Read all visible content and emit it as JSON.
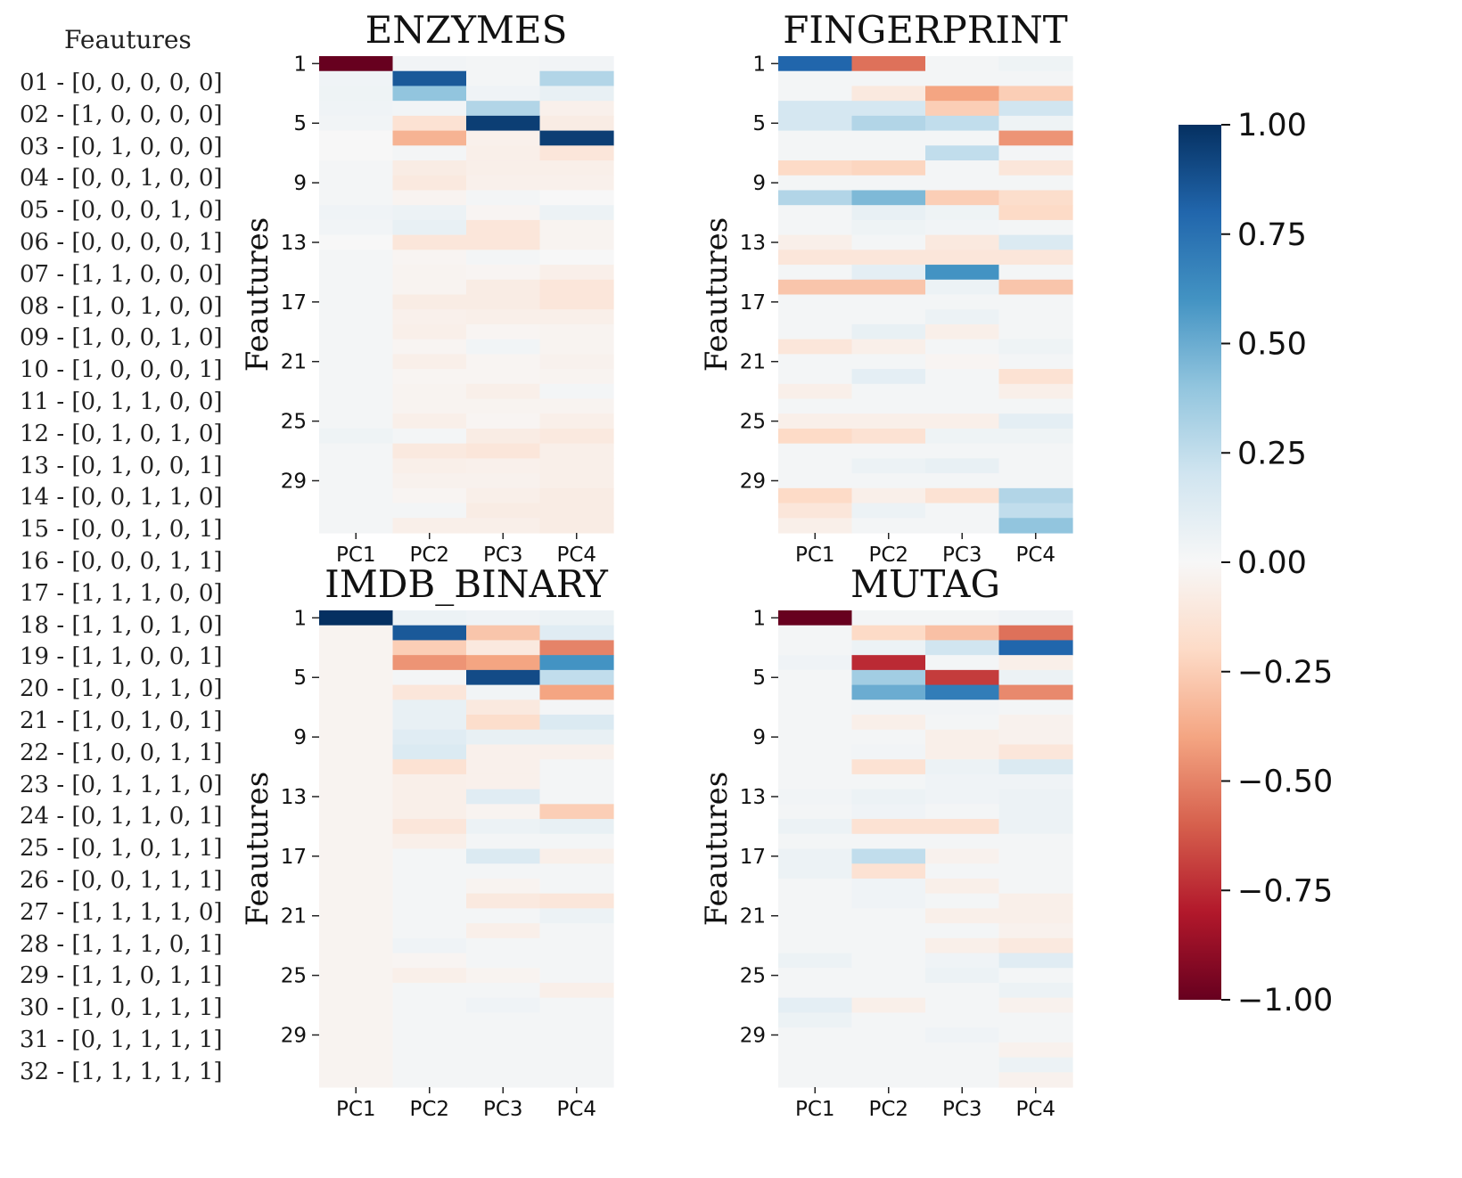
{
  "legend": {
    "title": "Feautures",
    "rows": [
      "01 - [0, 0, 0, 0, 0]",
      "02 - [1, 0, 0, 0, 0]",
      "03 - [0, 1, 0, 0, 0]",
      "04 - [0, 0, 1, 0, 0]",
      "05 - [0, 0, 0, 1, 0]",
      "06 - [0, 0, 0, 0, 1]",
      "07 - [1, 1, 0, 0, 0]",
      "08 - [1, 0, 1, 0, 0]",
      "09 - [1, 0, 0, 1, 0]",
      "10 - [1, 0, 0, 0, 1]",
      "11 - [0, 1, 1, 0, 0]",
      "12 - [0, 1, 0, 1, 0]",
      "13 - [0, 1, 0, 0, 1]",
      "14 - [0, 0, 1, 1, 0]",
      "15 - [0, 0, 1, 0, 1]",
      "16 - [0, 0, 0, 1, 1]",
      "17 - [1, 1, 1, 0, 0]",
      "18 - [1, 1, 0, 1, 0]",
      "19 - [1, 1, 0, 0, 1]",
      "20 - [1, 0, 1, 1, 0]",
      "21 - [1, 0, 1, 0, 1]",
      "22 - [1, 0, 0, 1, 1]",
      "23 - [0, 1, 1, 1, 0]",
      "24 - [0, 1, 1, 0, 1]",
      "25 - [0, 1, 0, 1, 1]",
      "26 - [0, 0, 1, 1, 1]",
      "27 - [1, 1, 1, 1, 0]",
      "28 - [1, 1, 1, 0, 1]",
      "29 - [1, 1, 0, 1, 1]",
      "30 - [1, 0, 1, 1, 1]",
      "31 - [0, 1, 1, 1, 1]",
      "32 - [1, 1, 1, 1, 1]"
    ]
  },
  "chart_data": [
    {
      "type": "heatmap",
      "title": "ENZYMES",
      "xlabel": "",
      "ylabel": "Feautures",
      "x": [
        "PC1",
        "PC2",
        "PC3",
        "PC4"
      ],
      "y_ticks": [
        "1",
        "5",
        "9",
        "13",
        "17",
        "21",
        "25",
        "29"
      ],
      "values": [
        [
          -1.0,
          0.03,
          0.02,
          0.03
        ],
        [
          0.04,
          0.85,
          0.02,
          0.3
        ],
        [
          0.05,
          0.4,
          0.04,
          0.08
        ],
        [
          0.04,
          0.03,
          0.3,
          -0.05
        ],
        [
          0.03,
          -0.15,
          0.95,
          -0.08
        ],
        [
          0.0,
          -0.35,
          -0.05,
          0.95
        ],
        [
          0.0,
          0.02,
          -0.06,
          -0.12
        ],
        [
          0.02,
          -0.08,
          -0.06,
          -0.06
        ],
        [
          0.02,
          -0.1,
          -0.05,
          -0.05
        ],
        [
          0.02,
          -0.03,
          0.02,
          0.0
        ],
        [
          0.04,
          0.06,
          -0.02,
          0.06
        ],
        [
          0.03,
          0.08,
          -0.12,
          -0.03
        ],
        [
          0.0,
          -0.12,
          -0.12,
          -0.03
        ],
        [
          0.02,
          -0.02,
          0.02,
          0.0
        ],
        [
          0.02,
          -0.03,
          -0.02,
          -0.06
        ],
        [
          0.02,
          -0.03,
          -0.08,
          -0.12
        ],
        [
          0.02,
          -0.08,
          -0.08,
          -0.12
        ],
        [
          0.02,
          -0.05,
          -0.06,
          -0.06
        ],
        [
          0.02,
          -0.06,
          -0.02,
          -0.03
        ],
        [
          0.02,
          -0.02,
          0.03,
          -0.03
        ],
        [
          0.02,
          -0.06,
          -0.02,
          -0.04
        ],
        [
          0.02,
          -0.02,
          -0.02,
          -0.03
        ],
        [
          0.02,
          -0.03,
          -0.06,
          0.02
        ],
        [
          0.02,
          -0.03,
          -0.03,
          -0.03
        ],
        [
          0.02,
          -0.06,
          -0.02,
          -0.06
        ],
        [
          0.05,
          0.02,
          -0.08,
          -0.1
        ],
        [
          0.02,
          -0.1,
          -0.12,
          -0.06
        ],
        [
          0.02,
          -0.06,
          -0.05,
          -0.06
        ],
        [
          0.02,
          -0.04,
          -0.04,
          -0.06
        ],
        [
          0.02,
          -0.02,
          -0.06,
          -0.08
        ],
        [
          0.02,
          0.02,
          -0.08,
          -0.08
        ],
        [
          0.02,
          -0.06,
          -0.06,
          -0.08
        ]
      ],
      "colorbar": {
        "range": [
          -1.0,
          1.0
        ],
        "cmap": "RdBu"
      }
    },
    {
      "type": "heatmap",
      "title": "FINGERPRINT",
      "xlabel": "",
      "ylabel": "Feautures",
      "x": [
        "PC1",
        "PC2",
        "PC3",
        "PC4"
      ],
      "y_ticks": [
        "1",
        "5",
        "9",
        "13",
        "17",
        "21",
        "25",
        "29"
      ],
      "values": [
        [
          0.8,
          -0.55,
          0.02,
          0.05
        ],
        [
          0.02,
          0.02,
          0.02,
          0.02
        ],
        [
          0.02,
          -0.1,
          -0.4,
          -0.25
        ],
        [
          0.18,
          0.18,
          -0.25,
          0.2
        ],
        [
          0.18,
          0.3,
          0.25,
          0.05
        ],
        [
          0.02,
          0.02,
          0.02,
          -0.45
        ],
        [
          0.02,
          0.02,
          0.25,
          0.02
        ],
        [
          -0.2,
          -0.22,
          0.02,
          -0.12
        ],
        [
          0.02,
          0.02,
          0.02,
          0.02
        ],
        [
          0.3,
          0.45,
          -0.25,
          -0.18
        ],
        [
          0.02,
          0.08,
          0.05,
          -0.2
        ],
        [
          0.02,
          0.05,
          0.03,
          0.02
        ],
        [
          -0.06,
          0.02,
          -0.1,
          0.15
        ],
        [
          -0.12,
          -0.12,
          -0.12,
          -0.12
        ],
        [
          0.02,
          0.1,
          0.6,
          0.02
        ],
        [
          -0.28,
          -0.28,
          0.06,
          -0.28
        ],
        [
          0.02,
          0.02,
          0.02,
          0.02
        ],
        [
          0.02,
          0.02,
          0.06,
          0.02
        ],
        [
          0.02,
          0.08,
          -0.06,
          0.02
        ],
        [
          -0.12,
          -0.06,
          0.02,
          0.05
        ],
        [
          0.02,
          0.02,
          -0.02,
          0.02
        ],
        [
          0.02,
          0.1,
          0.02,
          -0.15
        ],
        [
          -0.06,
          0.02,
          0.02,
          -0.06
        ],
        [
          0.02,
          0.02,
          0.02,
          0.02
        ],
        [
          -0.06,
          -0.06,
          -0.06,
          0.1
        ],
        [
          -0.2,
          -0.15,
          0.05,
          0.05
        ],
        [
          0.02,
          0.02,
          0.02,
          0.02
        ],
        [
          0.02,
          0.06,
          0.08,
          0.02
        ],
        [
          0.02,
          0.02,
          0.02,
          0.02
        ],
        [
          -0.2,
          -0.06,
          -0.15,
          0.3
        ],
        [
          -0.12,
          0.06,
          0.02,
          0.25
        ],
        [
          -0.06,
          0.02,
          0.02,
          0.4
        ]
      ],
      "colorbar": {
        "range": [
          -1.0,
          1.0
        ],
        "cmap": "RdBu"
      }
    },
    {
      "type": "heatmap",
      "title": "IMDB_BINARY",
      "xlabel": "",
      "ylabel": "Feautures",
      "x": [
        "PC1",
        "PC2",
        "PC3",
        "PC4"
      ],
      "y_ticks": [
        "1",
        "5",
        "9",
        "13",
        "17",
        "21",
        "25",
        "29"
      ],
      "values": [
        [
          1.0,
          0.06,
          0.04,
          0.06
        ],
        [
          -0.03,
          0.85,
          -0.28,
          0.12
        ],
        [
          -0.03,
          -0.25,
          -0.1,
          -0.5
        ],
        [
          -0.03,
          -0.45,
          -0.4,
          0.6
        ],
        [
          -0.03,
          0.02,
          0.9,
          0.25
        ],
        [
          -0.03,
          -0.12,
          0.03,
          -0.4
        ],
        [
          -0.03,
          0.08,
          -0.1,
          0.02
        ],
        [
          -0.03,
          0.08,
          -0.18,
          0.15
        ],
        [
          -0.03,
          0.12,
          0.08,
          0.08
        ],
        [
          -0.03,
          0.15,
          -0.05,
          -0.05
        ],
        [
          -0.03,
          -0.15,
          -0.05,
          0.02
        ],
        [
          -0.03,
          -0.06,
          -0.05,
          0.02
        ],
        [
          -0.03,
          -0.06,
          0.12,
          0.02
        ],
        [
          -0.03,
          -0.06,
          -0.03,
          -0.25
        ],
        [
          -0.03,
          -0.12,
          0.06,
          0.08
        ],
        [
          -0.03,
          -0.06,
          0.02,
          0.02
        ],
        [
          -0.03,
          0.02,
          0.15,
          -0.06
        ],
        [
          -0.03,
          0.02,
          0.02,
          0.02
        ],
        [
          -0.03,
          0.02,
          -0.03,
          0.02
        ],
        [
          -0.03,
          0.02,
          -0.1,
          -0.12
        ],
        [
          -0.03,
          0.02,
          0.02,
          0.06
        ],
        [
          -0.03,
          0.02,
          -0.06,
          0.02
        ],
        [
          -0.03,
          0.04,
          0.02,
          0.02
        ],
        [
          -0.03,
          -0.02,
          0.02,
          0.02
        ],
        [
          -0.03,
          -0.06,
          -0.03,
          0.02
        ],
        [
          -0.03,
          0.02,
          0.02,
          -0.06
        ],
        [
          -0.03,
          0.02,
          0.04,
          0.02
        ],
        [
          -0.03,
          0.02,
          0.02,
          0.02
        ],
        [
          -0.03,
          0.02,
          0.02,
          0.02
        ],
        [
          -0.03,
          0.02,
          0.02,
          0.02
        ],
        [
          -0.03,
          0.02,
          0.02,
          0.02
        ],
        [
          -0.03,
          0.02,
          0.02,
          0.02
        ]
      ],
      "colorbar": {
        "range": [
          -1.0,
          1.0
        ],
        "cmap": "RdBu"
      }
    },
    {
      "type": "heatmap",
      "title": "MUTAG",
      "xlabel": "",
      "ylabel": "Feautures",
      "x": [
        "PC1",
        "PC2",
        "PC3",
        "PC4"
      ],
      "y_ticks": [
        "1",
        "5",
        "9",
        "13",
        "17",
        "21",
        "25",
        "29"
      ],
      "values": [
        [
          -1.0,
          0.02,
          0.02,
          0.04
        ],
        [
          0.02,
          -0.2,
          -0.3,
          -0.55
        ],
        [
          0.02,
          0.06,
          0.2,
          0.8
        ],
        [
          0.04,
          -0.75,
          0.02,
          -0.06
        ],
        [
          0.02,
          0.35,
          -0.7,
          0.06
        ],
        [
          0.02,
          0.5,
          0.7,
          -0.48
        ],
        [
          0.02,
          0.03,
          0.03,
          0.02
        ],
        [
          0.02,
          -0.06,
          0.02,
          -0.04
        ],
        [
          0.02,
          0.02,
          -0.06,
          -0.04
        ],
        [
          0.02,
          0.03,
          -0.06,
          -0.12
        ],
        [
          0.02,
          -0.15,
          0.06,
          0.15
        ],
        [
          0.02,
          0.02,
          0.04,
          0.04
        ],
        [
          0.03,
          0.06,
          0.04,
          0.06
        ],
        [
          0.02,
          0.04,
          0.02,
          0.06
        ],
        [
          0.06,
          -0.15,
          -0.15,
          0.06
        ],
        [
          0.02,
          0.02,
          0.02,
          0.02
        ],
        [
          0.06,
          0.25,
          -0.04,
          0.02
        ],
        [
          0.06,
          -0.15,
          0.02,
          0.02
        ],
        [
          0.02,
          0.04,
          -0.06,
          0.02
        ],
        [
          0.02,
          0.04,
          0.02,
          -0.06
        ],
        [
          0.02,
          0.02,
          -0.06,
          -0.06
        ],
        [
          0.02,
          0.02,
          0.02,
          -0.04
        ],
        [
          0.02,
          0.02,
          -0.06,
          -0.1
        ],
        [
          0.06,
          0.02,
          0.04,
          0.12
        ],
        [
          0.02,
          0.02,
          0.06,
          0.02
        ],
        [
          0.02,
          0.02,
          0.02,
          0.06
        ],
        [
          0.1,
          -0.06,
          0.02,
          -0.04
        ],
        [
          0.06,
          0.02,
          0.02,
          0.02
        ],
        [
          0.02,
          0.02,
          0.04,
          0.02
        ],
        [
          0.02,
          0.02,
          0.02,
          -0.04
        ],
        [
          0.02,
          0.02,
          0.02,
          0.06
        ],
        [
          0.02,
          0.02,
          0.02,
          -0.04
        ]
      ],
      "colorbar": {
        "range": [
          -1.0,
          1.0
        ],
        "cmap": "RdBu"
      }
    }
  ],
  "colorbar": {
    "ticks": [
      "1.00",
      "0.75",
      "0.50",
      "0.25",
      "0.00",
      "−0.25",
      "−0.50",
      "−0.75",
      "−1.00"
    ],
    "colors": [
      "#67001f",
      "#b2182b",
      "#d6604d",
      "#f4a582",
      "#fddbc7",
      "#f7f7f7",
      "#d1e5f0",
      "#92c5de",
      "#4393c3",
      "#2166ac",
      "#053061"
    ]
  }
}
